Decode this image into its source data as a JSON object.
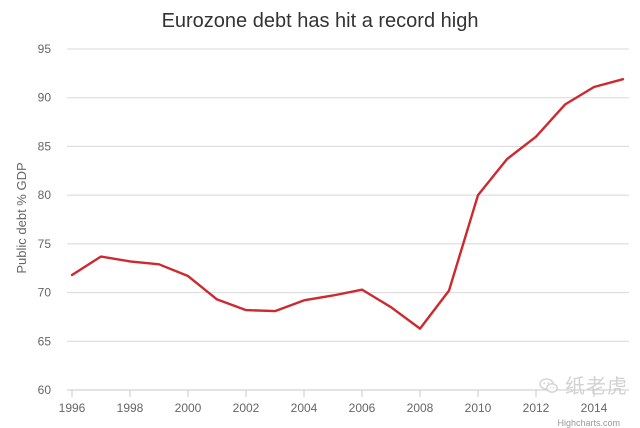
{
  "chart_data": {
    "type": "line",
    "title": "Eurozone debt has hit a record high",
    "xlabel": "",
    "ylabel": "Public debt % GDP",
    "x": [
      1996,
      1997,
      1998,
      1999,
      2000,
      2001,
      2002,
      2003,
      2004,
      2005,
      2006,
      2007,
      2008,
      2009,
      2010,
      2011,
      2012,
      2013,
      2014,
      2015
    ],
    "series": [
      {
        "values": [
          71.8,
          73.7,
          73.2,
          72.9,
          71.7,
          69.3,
          68.2,
          68.1,
          69.2,
          69.7,
          70.3,
          68.5,
          66.3,
          70.2,
          80.0,
          83.7,
          86.0,
          89.3,
          91.1,
          91.9
        ],
        "color": "#cc2a2f"
      }
    ],
    "xlim": [
      1996,
      2015
    ],
    "ylim": [
      60,
      95
    ],
    "xticks": [
      1996,
      1998,
      2000,
      2002,
      2004,
      2006,
      2008,
      2010,
      2012,
      2014
    ],
    "yticks": [
      60,
      65,
      70,
      75,
      80,
      85,
      90,
      95
    ],
    "grid": "horizontal"
  },
  "watermark": {
    "text": "纸老虎",
    "icon": "wechat-icon"
  },
  "credits": "Highcharts.com"
}
